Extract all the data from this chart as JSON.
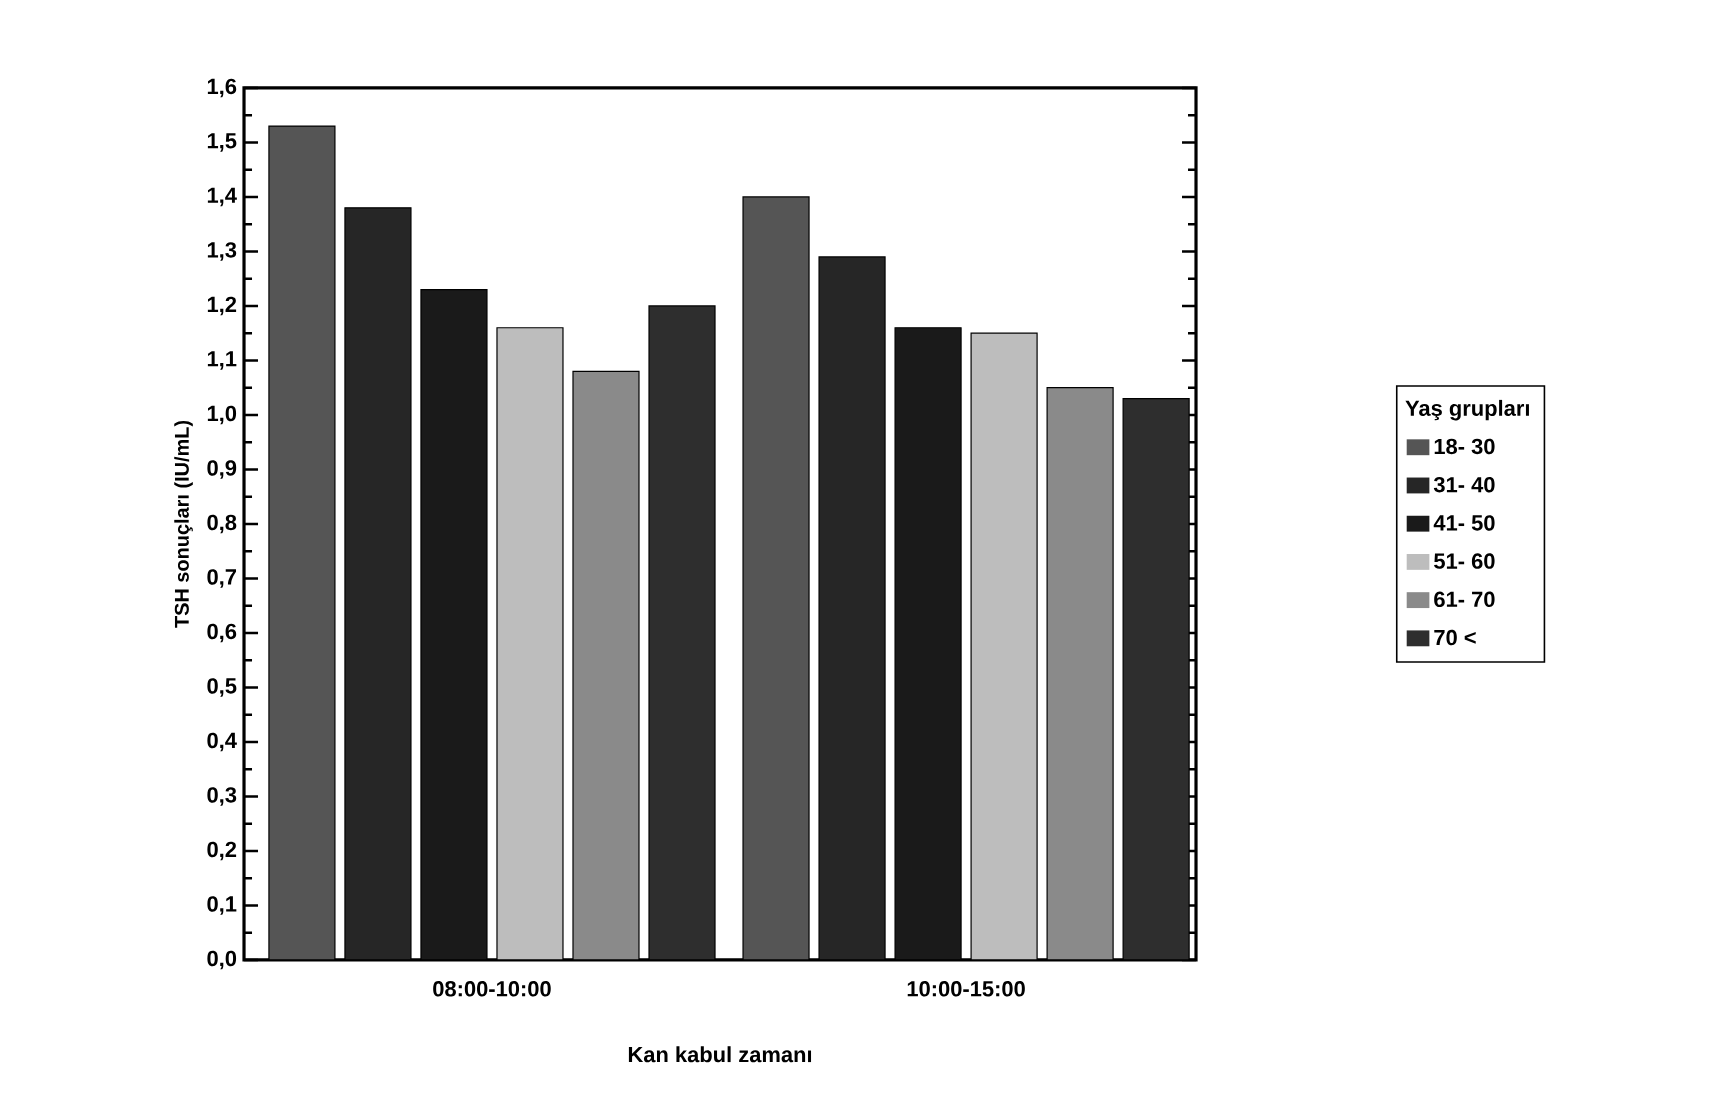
{
  "chart_data": {
    "type": "bar",
    "xlabel": "Kan kabul zamanı",
    "ylabel": "TSH sonuçları (IU/mL)",
    "legend_title": "Yaş grupları",
    "legend": "right",
    "categories": [
      "08:00-10:00",
      "10:00-15:00"
    ],
    "series": [
      {
        "name": "18- 30",
        "color": "#555555",
        "values": [
          1.53,
          1.4
        ]
      },
      {
        "name": "31- 40",
        "color": "#262626",
        "values": [
          1.38,
          1.29
        ]
      },
      {
        "name": "41- 50",
        "color": "#1a1a1a",
        "values": [
          1.23,
          1.16
        ]
      },
      {
        "name": "51- 60",
        "color": "#bdbdbd",
        "values": [
          1.16,
          1.15
        ]
      },
      {
        "name": "61- 70",
        "color": "#8a8a8a",
        "values": [
          1.08,
          1.05
        ]
      },
      {
        "name": "70 <",
        "color": "#2e2e2e",
        "values": [
          1.2,
          1.03
        ]
      }
    ],
    "ylim": [
      0,
      1.6
    ],
    "yticks": [
      {
        "value": 0,
        "label": "0,0"
      },
      {
        "value": 0.1,
        "label": "0,1"
      },
      {
        "value": 0.2,
        "label": "0,2"
      },
      {
        "value": 0.3,
        "label": "0,3"
      },
      {
        "value": 0.4,
        "label": "0,4"
      },
      {
        "value": 0.5,
        "label": "0,5"
      },
      {
        "value": 0.6,
        "label": "0,6"
      },
      {
        "value": 0.7,
        "label": "0,7"
      },
      {
        "value": 0.8,
        "label": "0,8"
      },
      {
        "value": 0.9,
        "label": "0,9"
      },
      {
        "value": 1.0,
        "label": "1,0"
      },
      {
        "value": 1.1,
        "label": "1,1"
      },
      {
        "value": 1.2,
        "label": "1,2"
      },
      {
        "value": 1.3,
        "label": "1,3"
      },
      {
        "value": 1.4,
        "label": "1,4"
      },
      {
        "value": 1.5,
        "label": "1,5"
      },
      {
        "value": 1.6,
        "label": "1,6"
      }
    ]
  }
}
